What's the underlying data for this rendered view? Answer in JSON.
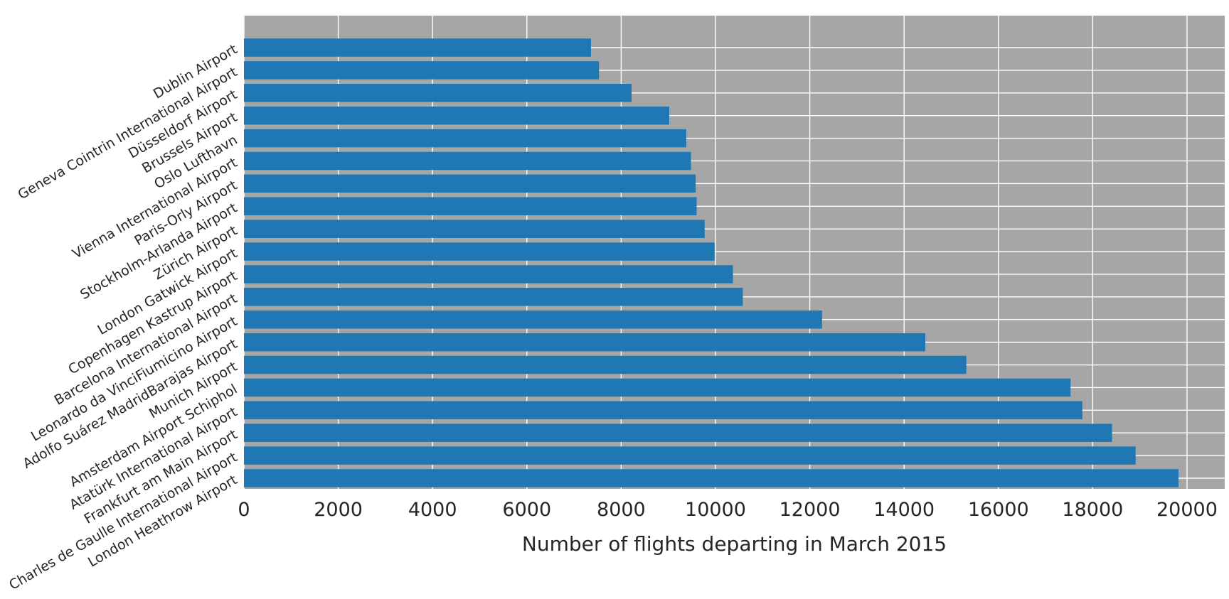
{
  "chart_data": {
    "type": "bar",
    "orientation": "horizontal",
    "xlabel": "Number of flights departing in March 2015",
    "ylabel": "",
    "xlim": [
      0,
      20800
    ],
    "x_ticks": [
      0,
      2000,
      4000,
      6000,
      8000,
      10000,
      12000,
      14000,
      16000,
      18000,
      20000
    ],
    "grid": true,
    "background_color": "#a6a6a6",
    "grid_color": "#ffffff",
    "bar_color": "#1f77b4",
    "categories": [
      "Dublin Airport",
      "Geneva Cointrin International Airport",
      "Düsseldorf Airport",
      "Brussels Airport",
      "Oslo Lufthavn",
      "Vienna International Airport",
      "Paris-Orly Airport",
      "Stockholm-Arlanda Airport",
      "Zürich Airport",
      "London Gatwick Airport",
      "Copenhagen Kastrup Airport",
      "Barcelona International Airport",
      "Leonardo da Vinci\u001fFiumicino Airport",
      "Adolfo Suárez Madrid\u001fBarajas Airport",
      "Munich Airport",
      "Amsterdam Airport Schiphol",
      "Atatürk International Airport",
      "Frankfurt am Main Airport",
      "Charles de Gaulle International Airport",
      "London Heathrow Airport"
    ],
    "values": [
      7360,
      7530,
      8220,
      9020,
      9380,
      9480,
      9580,
      9600,
      9770,
      9980,
      10370,
      10580,
      12260,
      14450,
      15320,
      17530,
      17780,
      18410,
      18910,
      19820
    ]
  }
}
